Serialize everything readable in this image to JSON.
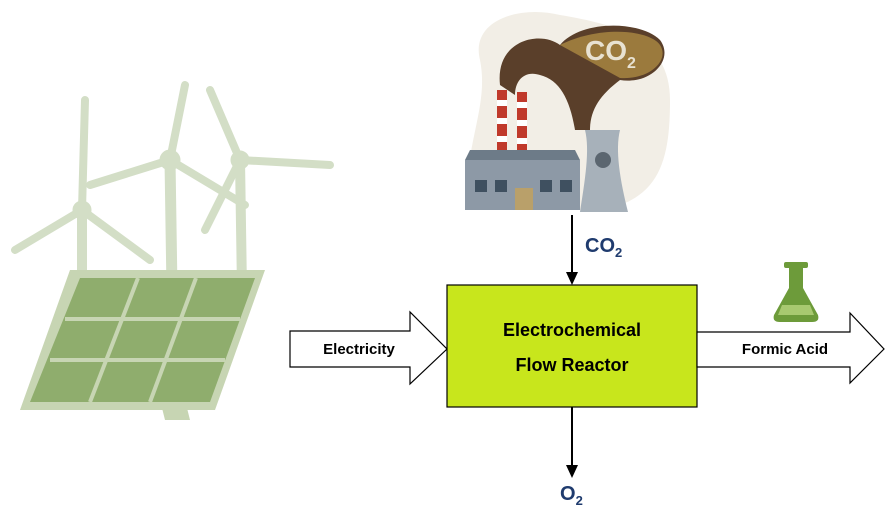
{
  "cloud_label": {
    "main": "CO",
    "sub": "2"
  },
  "input_top": {
    "main": "CO",
    "sub": "2"
  },
  "input_left": "Electricity",
  "reactor": {
    "lines": [
      "Electrochemical",
      "Flow Reactor"
    ]
  },
  "output_right": "Formic Acid",
  "output_bottom": {
    "main": "O",
    "sub": "2"
  }
}
